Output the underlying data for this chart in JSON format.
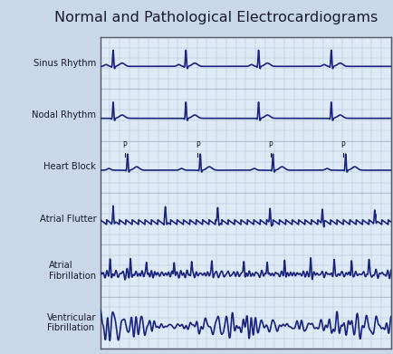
{
  "title": "Normal and Pathological Electrocardiograms",
  "title_fontsize": 11.5,
  "background_color": "#c8d8ea",
  "plot_bg_color": "#deeaf5",
  "line_color": "#1a237e",
  "line_width": 1.2,
  "labels": [
    "Sinus Rhythm",
    "Nodal Rhythm",
    "Heart Block",
    "Atrial Flutter",
    "Atrial\nFibrillation",
    "Ventricular\nFibrillation"
  ],
  "label_fontsize": 7.2,
  "grid_color": "#aabfd8",
  "grid_linewidth": 0.35,
  "border_color": "#8899aa",
  "outer_border_color": "#555566"
}
